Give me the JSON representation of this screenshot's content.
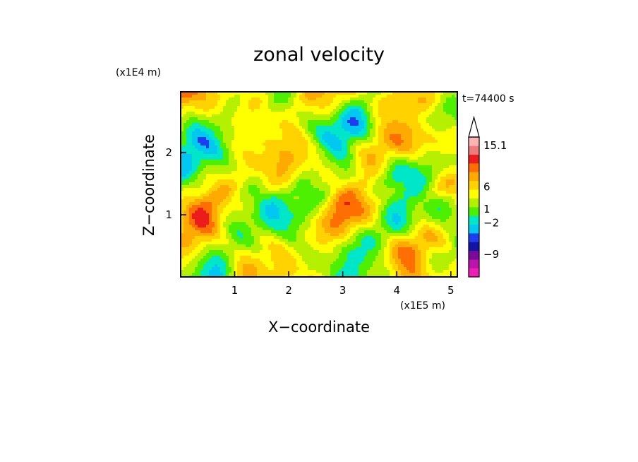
{
  "chart_data": {
    "type": "heatmap",
    "title": "zonal velocity",
    "xlabel": "X−coordinate",
    "ylabel": "Z−coordinate",
    "x_scale_label": "(x1E5 m)",
    "y_scale_label": "(x1E4 m)",
    "time_label": "t=74400 s",
    "xlim": [
      0,
      5.12
    ],
    "ylim": [
      0,
      2.98
    ],
    "x_ticks": [
      "1",
      "2",
      "3",
      "4",
      "5"
    ],
    "y_ticks": [
      "1",
      "2"
    ],
    "colorbar": {
      "tick_labels": [
        "15.1",
        "6",
        "1",
        "−2",
        "−9"
      ],
      "tick_values": [
        15.1,
        6,
        1,
        -2,
        -9
      ],
      "colors": [
        "#ee1cb4",
        "#bb14aa",
        "#7a0a9a",
        "#1414a4",
        "#1e3cf0",
        "#00c8f0",
        "#00e6c8",
        "#4cf000",
        "#b4f000",
        "#ffff00",
        "#ffd200",
        "#ffaa00",
        "#ff6e00",
        "#ec1c1c",
        "#ee7a7a",
        "#ffb4b4"
      ]
    }
  }
}
